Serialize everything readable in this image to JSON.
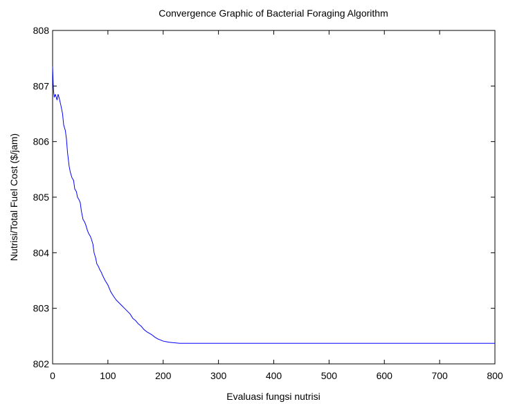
{
  "chart_data": {
    "type": "line",
    "title": "Convergence Graphic of Bacterial Foraging Algorithm",
    "xlabel": "Evaluasi fungsi nutrisi",
    "ylabel": "Nutrisi/Total Fuel Cost ($/jam)",
    "xlim": [
      0,
      800
    ],
    "ylim": [
      802,
      808
    ],
    "xticks": [
      0,
      100,
      200,
      300,
      400,
      500,
      600,
      700,
      800
    ],
    "yticks": [
      802,
      803,
      804,
      805,
      806,
      807,
      808
    ],
    "grid": false,
    "line_color": "#0000ff",
    "series": [
      {
        "x": [
          0,
          1,
          2,
          3,
          5,
          8,
          10,
          12,
          15,
          18,
          20,
          23,
          25,
          27,
          30,
          32,
          35,
          38,
          40,
          43,
          45,
          48,
          50,
          52,
          55,
          58,
          60,
          63,
          65,
          68,
          70,
          73,
          75,
          78,
          80,
          83,
          85,
          88,
          90,
          95,
          100,
          105,
          110,
          115,
          120,
          125,
          130,
          135,
          140,
          145,
          150,
          155,
          160,
          165,
          170,
          175,
          180,
          185,
          190,
          195,
          200,
          205,
          210,
          215,
          220,
          225,
          230,
          300,
          400,
          500,
          600,
          700,
          800
        ],
        "y": [
          807.35,
          807.05,
          806.88,
          806.8,
          806.85,
          806.75,
          806.85,
          806.78,
          806.65,
          806.5,
          806.3,
          806.2,
          806.05,
          805.8,
          805.55,
          805.45,
          805.35,
          805.3,
          805.15,
          805.1,
          805.0,
          804.95,
          804.9,
          804.75,
          804.6,
          804.55,
          804.5,
          804.4,
          804.35,
          804.3,
          804.25,
          804.15,
          804.0,
          803.9,
          803.8,
          803.75,
          803.7,
          803.65,
          803.6,
          803.5,
          803.42,
          803.3,
          803.22,
          803.15,
          803.1,
          803.05,
          803.0,
          802.95,
          802.9,
          802.82,
          802.78,
          802.72,
          802.68,
          802.62,
          802.58,
          802.55,
          802.52,
          802.48,
          802.45,
          802.43,
          802.41,
          802.4,
          802.39,
          802.385,
          802.38,
          802.375,
          802.37,
          802.37,
          802.37,
          802.37,
          802.37,
          802.37,
          802.37
        ]
      }
    ]
  }
}
